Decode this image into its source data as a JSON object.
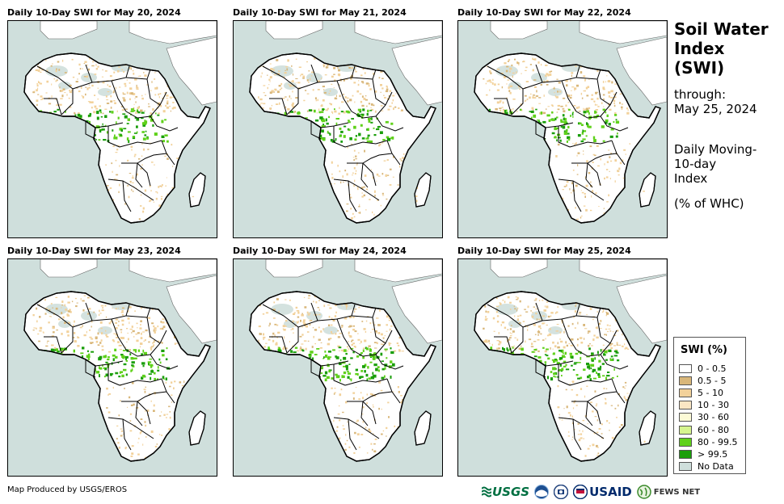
{
  "panels": [
    {
      "title": "Daily 10-Day SWI for May 20, 2024"
    },
    {
      "title": "Daily 10-Day SWI for May 21, 2024"
    },
    {
      "title": "Daily 10-Day SWI for May 22, 2024"
    },
    {
      "title": "Daily 10-Day SWI for May 23, 2024"
    },
    {
      "title": "Daily 10-Day SWI for May 24, 2024"
    },
    {
      "title": "Daily 10-Day SWI for May 25, 2024"
    }
  ],
  "sidebar": {
    "title_line1": "Soil Water",
    "title_line2": "Index",
    "title_line3": "(SWI)",
    "through_label": "through:",
    "through_date": "May 25, 2024",
    "desc_line1": "Daily Moving-",
    "desc_line2": "10-day",
    "desc_line3": "Index",
    "unit": "(% of WHC)"
  },
  "legend": {
    "title": "SWI (%)",
    "items": [
      {
        "label": "0 - 0.5",
        "color": "#ffffff"
      },
      {
        "label": "0.5 - 5",
        "color": "#d9b77a"
      },
      {
        "label": "5 - 10",
        "color": "#f2d19a"
      },
      {
        "label": "10 - 30",
        "color": "#fbe6c4"
      },
      {
        "label": "30 - 60",
        "color": "#fdfbd6"
      },
      {
        "label": "60 - 80",
        "color": "#d6f58f"
      },
      {
        "label": "80 - 99.5",
        "color": "#5fd11a"
      },
      {
        "label": "> 99.5",
        "color": "#1a9e0a"
      },
      {
        "label": "No Data",
        "color": "#cfdfdc"
      }
    ]
  },
  "footer": {
    "credit": "Map Produced by USGS/EROS",
    "logo_usgs": "USGS",
    "logo_usaid": "USAID",
    "logo_fews": "FEWS NET"
  },
  "colors": {
    "ocean": "#cfdfdc",
    "land": "#ffffff",
    "tan": "#f2d19a",
    "dark_tan": "#d9b77a",
    "green": "#5fd11a",
    "dark_green": "#1a9e0a",
    "no_data": "#cfdfdc"
  }
}
